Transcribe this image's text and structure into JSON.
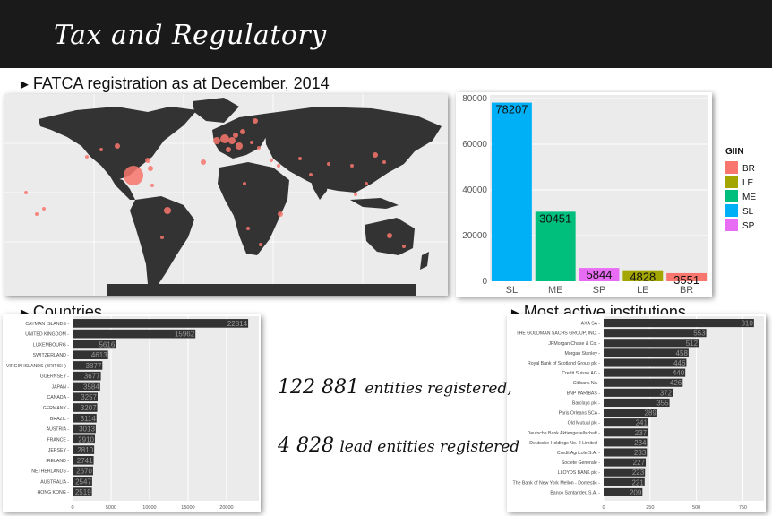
{
  "slide": {
    "title": "Tax and Regulatory",
    "section_heading": "FATCA registration as at December, 2014",
    "countries_heading": "Countries",
    "institutions_heading": "Most active institutions",
    "stat_line_1": {
      "number": "122 881",
      "text": "entities registered,"
    },
    "stat_line_2": {
      "number": "4 828",
      "text": "lead entities registered"
    },
    "arrow_icon": "►"
  },
  "chart_data": [
    {
      "type": "bar",
      "id": "giin",
      "categories": [
        "SL",
        "ME",
        "SP",
        "LE",
        "BR"
      ],
      "values": [
        78207,
        30451,
        5844,
        4828,
        3551
      ],
      "colors": [
        "#00b0f6",
        "#00bf7d",
        "#e76bf3",
        "#a3a500",
        "#f8766d"
      ],
      "yticks": [
        0,
        20000,
        40000,
        60000,
        80000
      ],
      "ylim": [
        0,
        80000
      ],
      "legend": {
        "title": "GIIN",
        "placement": "right",
        "entries": [
          {
            "label": "BR",
            "color": "#f8766d"
          },
          {
            "label": "LE",
            "color": "#a3a500"
          },
          {
            "label": "ME",
            "color": "#00bf7d"
          },
          {
            "label": "SL",
            "color": "#00b0f6"
          },
          {
            "label": "SP",
            "color": "#e76bf3"
          }
        ]
      }
    },
    {
      "type": "bar",
      "orientation": "horizontal",
      "id": "countries",
      "categories": [
        "CAYMAN ISLANDS",
        "UNITED KINGDOM",
        "LUXEMBOURG",
        "SWITZERLAND",
        "VIRGIN ISLANDS (BRITISH)",
        "GUERNSEY",
        "JAPAN",
        "CANADA",
        "GERMANY",
        "BRAZIL",
        "AUSTRIA",
        "FRANCE",
        "JERSEY",
        "IRELAND",
        "NETHERLANDS",
        "AUSTRALIA",
        "HONG KONG"
      ],
      "values": [
        22814,
        15962,
        5616,
        4613,
        3877,
        3677,
        3584,
        3257,
        3207,
        3114,
        3013,
        2910,
        2810,
        2741,
        2670,
        2547,
        2519
      ],
      "value_labels": [
        "22814",
        "15962",
        "5616",
        "4613",
        "3877",
        "3677",
        "3584",
        "3257",
        "3207",
        "3114",
        "3013",
        "2910",
        "2810",
        "2741",
        "2670",
        "2547",
        "2519"
      ],
      "xticks": [
        0,
        5000,
        10000,
        15000,
        20000
      ],
      "xlim": [
        0,
        23500
      ]
    },
    {
      "type": "bar",
      "orientation": "horizontal",
      "id": "institutions",
      "categories": [
        "AXA SA",
        "THE GOLDMAN SACHS GROUP, INC.",
        "JPMorgan Chase & Co.",
        "Morgan Stanley",
        "Royal Bank of Scotland Group plc",
        "Credit Suisse AG",
        "Citibank NA",
        "BNP PARIBAS",
        "Barclays plc",
        "Paris Orleans SCA",
        "Old Mutual plc",
        "Deutsche Bank Aktiengesellschaft",
        "Deutsche Holdings No. 2 Limited",
        "Credit Agricole S.A.",
        "Societe Generale",
        "LLOYDS BANK plc",
        "The Bank of New York Mellon - Domestic",
        "Banco Santander, S.A."
      ],
      "values": [
        810,
        553,
        512,
        458,
        446,
        440,
        426,
        372,
        355,
        289,
        241,
        237,
        234,
        233,
        227,
        223,
        221,
        209
      ],
      "value_labels": [
        "810",
        "553",
        "512",
        "458",
        "446",
        "440",
        "426",
        "372",
        "355",
        "289",
        "241",
        "237",
        "234",
        "233",
        "227",
        "223",
        "221",
        "209"
      ],
      "xticks": [
        0,
        250,
        500,
        750
      ],
      "xlim": [
        0,
        830
      ]
    }
  ],
  "map": {
    "land_color": "#333333",
    "background_color": "#ebebeb",
    "point_color": "#f8766d"
  }
}
